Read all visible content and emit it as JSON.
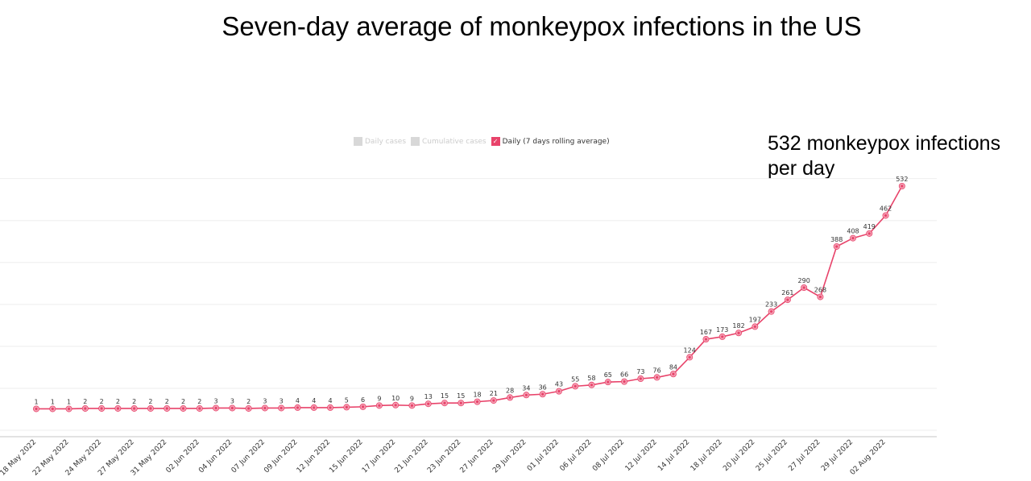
{
  "chart_data": {
    "type": "line",
    "title": "Seven-day average of monkeypox infections in the US",
    "annotation": "532 monkeypox infections per day",
    "legend": [
      {
        "label": "Daily cases",
        "active": false
      },
      {
        "label": "Cumulative cases",
        "active": false
      },
      {
        "label": "Daily (7 days rolling average)",
        "active": true,
        "check": "✓"
      }
    ],
    "legend_placement": "top-center",
    "color": "#e8436a",
    "xlabel": "",
    "ylabel": "",
    "ylim": [
      -65,
      560
    ],
    "grid": true,
    "gridlines": [
      -50,
      50,
      150,
      250,
      350,
      450,
      550
    ],
    "series": [
      {
        "name": "Daily (7 days rolling average)",
        "values": [
          1,
          1,
          1,
          2,
          2,
          2,
          2,
          2,
          2,
          2,
          2,
          3,
          3,
          2,
          3,
          3,
          4,
          4,
          4,
          5,
          6,
          9,
          10,
          9,
          13,
          15,
          15,
          18,
          21,
          28,
          34,
          36,
          43,
          55,
          58,
          65,
          66,
          73,
          76,
          84,
          124,
          167,
          173,
          182,
          197,
          233,
          261,
          290,
          268,
          388,
          408,
          419,
          462,
          532
        ]
      }
    ],
    "x_tick_labels": [
      "18 May 2022",
      "22 May 2022",
      "24 May 2022",
      "27 May 2022",
      "31 May 2022",
      "02 Jun 2022",
      "04 Jun 2022",
      "07 Jun 2022",
      "09 Jun 2022",
      "12 Jun 2022",
      "15 Jun 2022",
      "17 Jun 2022",
      "21 Jun 2022",
      "23 Jun 2022",
      "27 Jun 2022",
      "29 Jun 2022",
      "01 Jul 2022",
      "06 Jul 2022",
      "08 Jul 2022",
      "12 Jul 2022",
      "14 Jul 2022",
      "18 Jul 2022",
      "20 Jul 2022",
      "25 Jul 2022",
      "27 Jul 2022",
      "29 Jul 2022",
      "02 Aug 2022"
    ]
  }
}
